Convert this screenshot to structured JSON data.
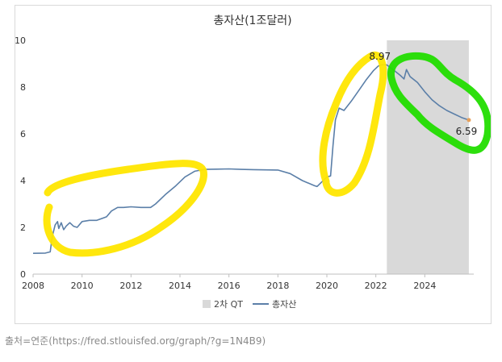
{
  "caption": "출처=연준(https://fred.stlouisfed.org/graph/?g=1N4B9)",
  "chart_data": {
    "type": "line",
    "title": "총자산(1조달러)",
    "xlabel": "",
    "ylabel": "",
    "xlim": [
      2008,
      2026
    ],
    "ylim": [
      0,
      10
    ],
    "x_ticks": [
      2008,
      2010,
      2012,
      2014,
      2016,
      2018,
      2020,
      2022,
      2024
    ],
    "y_ticks": [
      0,
      2,
      4,
      6,
      8,
      10
    ],
    "grid": false,
    "legend_position": "bottom",
    "legend": [
      {
        "label": "2차 QT",
        "kind": "box",
        "color": "#d9d9d9"
      },
      {
        "label": "총자산",
        "kind": "line",
        "color": "#5b7fa8"
      }
    ],
    "shaded_regions": [
      {
        "label": "2차 QT",
        "x_start": 2022.45,
        "x_end": 2025.8,
        "color": "#d9d9d9"
      }
    ],
    "series": [
      {
        "name": "총자산",
        "color": "#5b7fa8",
        "points": [
          [
            2008.0,
            0.89
          ],
          [
            2008.5,
            0.9
          ],
          [
            2008.7,
            0.95
          ],
          [
            2008.78,
            1.6
          ],
          [
            2008.9,
            2.1
          ],
          [
            2009.0,
            2.25
          ],
          [
            2009.05,
            1.95
          ],
          [
            2009.15,
            2.2
          ],
          [
            2009.25,
            1.9
          ],
          [
            2009.35,
            2.05
          ],
          [
            2009.5,
            2.2
          ],
          [
            2009.65,
            2.05
          ],
          [
            2009.8,
            2.0
          ],
          [
            2010.0,
            2.25
          ],
          [
            2010.3,
            2.3
          ],
          [
            2010.6,
            2.3
          ],
          [
            2011.0,
            2.45
          ],
          [
            2011.2,
            2.7
          ],
          [
            2011.45,
            2.85
          ],
          [
            2011.7,
            2.85
          ],
          [
            2012.0,
            2.88
          ],
          [
            2012.4,
            2.85
          ],
          [
            2012.8,
            2.85
          ],
          [
            2013.0,
            3.0
          ],
          [
            2013.4,
            3.4
          ],
          [
            2013.8,
            3.75
          ],
          [
            2014.2,
            4.15
          ],
          [
            2014.6,
            4.4
          ],
          [
            2015.0,
            4.48
          ],
          [
            2015.5,
            4.49
          ],
          [
            2016.0,
            4.5
          ],
          [
            2016.5,
            4.48
          ],
          [
            2017.0,
            4.47
          ],
          [
            2017.5,
            4.46
          ],
          [
            2018.0,
            4.45
          ],
          [
            2018.5,
            4.3
          ],
          [
            2019.0,
            4.0
          ],
          [
            2019.5,
            3.78
          ],
          [
            2019.6,
            3.75
          ],
          [
            2019.8,
            3.95
          ],
          [
            2020.0,
            4.15
          ],
          [
            2020.15,
            4.2
          ],
          [
            2020.25,
            5.5
          ],
          [
            2020.35,
            6.6
          ],
          [
            2020.5,
            7.1
          ],
          [
            2020.7,
            7.0
          ],
          [
            2021.0,
            7.4
          ],
          [
            2021.3,
            7.85
          ],
          [
            2021.6,
            8.3
          ],
          [
            2021.9,
            8.7
          ],
          [
            2022.1,
            8.9
          ],
          [
            2022.25,
            8.96
          ],
          [
            2022.45,
            8.95
          ],
          [
            2022.7,
            8.75
          ],
          [
            2023.0,
            8.5
          ],
          [
            2023.15,
            8.35
          ],
          [
            2023.25,
            8.75
          ],
          [
            2023.4,
            8.45
          ],
          [
            2023.7,
            8.2
          ],
          [
            2024.0,
            7.8
          ],
          [
            2024.3,
            7.45
          ],
          [
            2024.6,
            7.2
          ],
          [
            2024.9,
            7.0
          ],
          [
            2025.2,
            6.85
          ],
          [
            2025.5,
            6.7
          ],
          [
            2025.8,
            6.59
          ]
        ]
      }
    ],
    "annotations": [
      {
        "text": "8.97",
        "x": 2022.3,
        "y": 8.97
      },
      {
        "text": "6.59",
        "x": 2025.8,
        "y": 6.59
      }
    ],
    "highlights": [
      {
        "color": "#ffe600",
        "x_range": [
          2008.6,
          2014.8
        ],
        "period": "2008–2014"
      },
      {
        "color": "#ffe600",
        "x_range": [
          2019.5,
          2022.0
        ],
        "period": "2019–2022"
      },
      {
        "color": "#22dd00",
        "x_range": [
          2022.4,
          2025.8
        ],
        "period": "2022–2025"
      }
    ]
  }
}
